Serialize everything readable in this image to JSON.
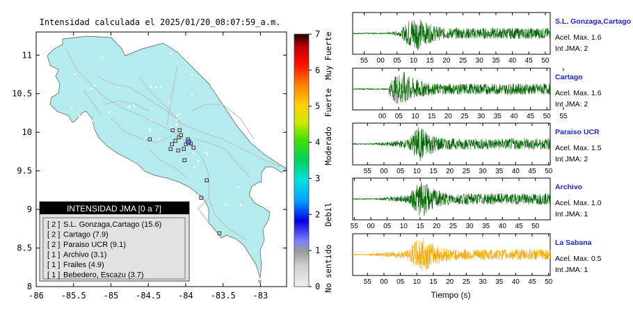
{
  "map": {
    "title": "Intensidad calculada el 2025/01/20_08:07:59_a.m.",
    "x_ticks": [
      "-86",
      "-85.5",
      "-85",
      "-84.5",
      "-84",
      "-83.5",
      "-83"
    ],
    "y_ticks": [
      "11",
      "10.5",
      "10",
      "9.5",
      "9",
      "8.5",
      "8"
    ],
    "colors": {
      "land": "#b4ecee",
      "ocean": "#ffffff",
      "roads": "#b9bfc1",
      "station_box": "#222222"
    }
  },
  "colorbar": {
    "ticks": [
      "0",
      "1",
      "2",
      "3",
      "4",
      "5",
      "6",
      "7"
    ],
    "category_labels": [
      "No sentido",
      "Debil",
      "Moderado",
      "Fuerte",
      "Muy Fuerte"
    ]
  },
  "legend": {
    "title": "INTENSIDAD JMA [0 a 7]",
    "items": [
      {
        "jma": "[ 2 ]",
        "name": "S.L. Gonzaga,Cartago (15.6)"
      },
      {
        "jma": "[ 2 ]",
        "name": "Cartago (7.9)"
      },
      {
        "jma": "[ 2 ]",
        "name": "Paraiso UCR (9.1)"
      },
      {
        "jma": "[ 1 ]",
        "name": "Archivo (3.1)"
      },
      {
        "jma": "[ 1 ]",
        "name": "Frailes (4.9)"
      },
      {
        "jma": "[ 1 ]",
        "name": "Bebedero, Escazu (3.7)"
      }
    ]
  },
  "chart_data": [
    {
      "type": "line",
      "title": "Intensidad calculada el 2025/01/20_08:07:59_a.m.",
      "xlabel": "",
      "ylabel": "",
      "xlim": [
        -86,
        -82.65
      ],
      "ylim": [
        8,
        11.3
      ],
      "x_ticks": [
        -86,
        -85.5,
        -85,
        -84.5,
        -84,
        -83.5,
        -83
      ],
      "y_ticks": [
        8,
        8.5,
        9,
        9.5,
        10,
        10.5,
        11
      ],
      "colorbar": {
        "range": [
          0,
          7
        ],
        "ticks": [
          0,
          1,
          2,
          3,
          4,
          5,
          6,
          7
        ]
      }
    },
    {
      "type": "line",
      "xlabel": "Tiempo (s)",
      "traces": [
        {
          "station": "S.L. Gonzaga,Cartago",
          "accel_label": "Acel. Max. 1.6",
          "jma_label": "Int JMA: 2",
          "color": "#006400",
          "time_ticks": [
            "55",
            "00",
            "05",
            "10",
            "15",
            "20",
            "25",
            "30",
            "35",
            "40",
            "45",
            "50"
          ],
          "tick_first_s": 3.5,
          "onset_s": 10.5,
          "peak_s": 19,
          "amplitude": 0.95,
          "decay": 7.5
        },
        {
          "station": "Cartago",
          "accel_label": "Acel. Max. 1.6",
          "jma_label": "Int JMA: 2",
          "color": "#006400",
          "time_ticks": [
            "00",
            "05",
            "10",
            "15",
            "20",
            "25",
            "30",
            "35",
            "40",
            "45",
            "50",
            "55"
          ],
          "tick_first_s": 9,
          "onset_s": 11,
          "peak_s": 15,
          "amplitude": 0.95,
          "decay": 8.0
        },
        {
          "station": "Paraiso UCR",
          "accel_label": "Acel. Max. 1.5",
          "jma_label": "Int JMA: 2",
          "color": "#006400",
          "time_ticks": [
            "55",
            "00",
            "05",
            "10",
            "15",
            "20",
            "25",
            "30",
            "35",
            "40",
            "45",
            "50"
          ],
          "tick_first_s": 4.5,
          "onset_s": 6.5,
          "peak_s": 20.5,
          "amplitude": 0.95,
          "decay": 6.5
        },
        {
          "station": "Archivo",
          "accel_label": "Acel. Max. 1.0",
          "jma_label": "Int JMA: 1",
          "color": "#006400",
          "time_ticks": [
            "55",
            "00",
            "05",
            "10",
            "15",
            "20",
            "25",
            "30",
            "35",
            "40",
            "45",
            "50"
          ],
          "tick_first_s": 0.5,
          "onset_s": 8,
          "peak_s": 21,
          "amplitude": 0.95,
          "decay": 7.0
        },
        {
          "station": "La Sabana",
          "accel_label": "Acel. Max. 0.5",
          "jma_label": "Int JMA: 1",
          "color": "#f5a800",
          "time_ticks": [
            "55",
            "00",
            "05",
            "10",
            "15",
            "20",
            "25",
            "30",
            "35",
            "40",
            "45",
            "50"
          ],
          "tick_first_s": 4.5,
          "onset_s": 5,
          "peak_s": 21,
          "amplitude": 0.95,
          "decay": 8.0
        }
      ]
    }
  ]
}
